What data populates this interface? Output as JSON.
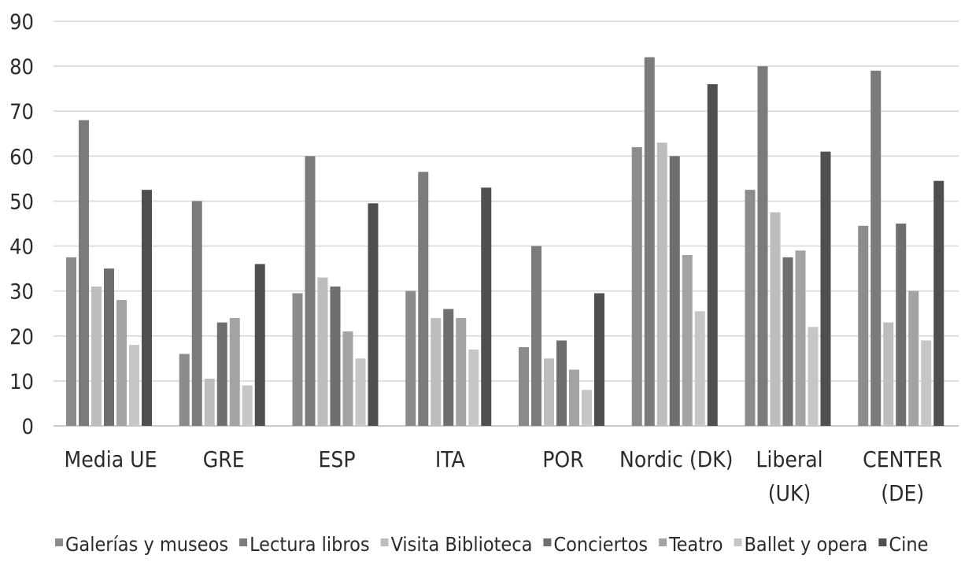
{
  "chart_data": {
    "type": "bar",
    "title": "",
    "xlabel": "",
    "ylabel": "",
    "ylim": [
      0,
      90
    ],
    "yticks": [
      "0",
      "10",
      "20",
      "30",
      "40",
      "50",
      "60",
      "70",
      "80",
      "90"
    ],
    "grid": true,
    "legend_position": "bottom",
    "categories": [
      [
        "Media UE"
      ],
      [
        "GRE"
      ],
      [
        "ESP"
      ],
      [
        "ITA"
      ],
      [
        "POR"
      ],
      [
        "Nordic (DK)"
      ],
      [
        "Liberal",
        "(UK)"
      ],
      [
        "CENTER",
        "(DE)"
      ]
    ],
    "series": [
      {
        "name": "Galerías y museos",
        "color": "#8c8c8c",
        "values": [
          37.5,
          16,
          29.5,
          30,
          17.5,
          62,
          52.5,
          44.5
        ]
      },
      {
        "name": "Lectura libros",
        "color": "#7b7b7b",
        "values": [
          68,
          50,
          60,
          56.5,
          40,
          82,
          80,
          79
        ]
      },
      {
        "name": "Visita Biblioteca",
        "color": "#bdbdbd",
        "values": [
          31,
          10.5,
          33,
          24,
          15,
          63,
          47.5,
          23
        ]
      },
      {
        "name": "Conciertos",
        "color": "#6f6f6f",
        "values": [
          35,
          23,
          31,
          26,
          19,
          60,
          37.5,
          45
        ]
      },
      {
        "name": "Teatro",
        "color": "#a3a3a3",
        "values": [
          28,
          24,
          21,
          24,
          12.5,
          38,
          39,
          30
        ]
      },
      {
        "name": "Ballet y opera",
        "color": "#c6c6c6",
        "values": [
          18,
          9,
          15,
          17,
          8,
          25.5,
          22,
          19
        ]
      },
      {
        "name": "Cine",
        "color": "#4f4f4f",
        "values": [
          52.5,
          36,
          49.5,
          53,
          29.5,
          76,
          61,
          54.5
        ]
      }
    ]
  }
}
